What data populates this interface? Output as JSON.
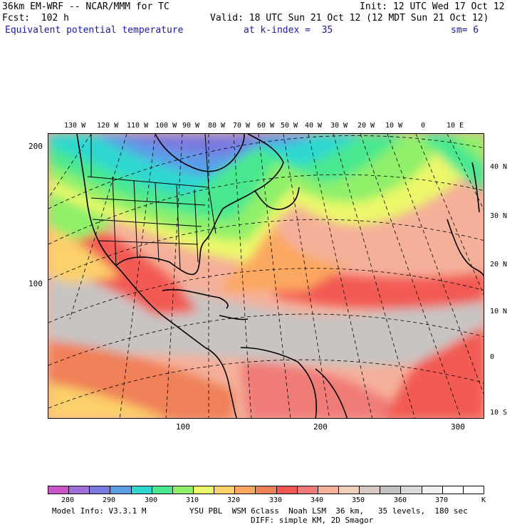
{
  "header": {
    "model": "36km EM-WRF -- NCAR/MMM for TC",
    "init": "Init: 12 UTC Wed 17 Oct 12",
    "fcst": "Fcst:  102 h",
    "valid": "Valid: 18 UTC Sun 21 Oct 12 (12 MDT Sun 21 Oct 12)",
    "field": "Equivalent potential temperature",
    "level": "at k-index =  35",
    "smooth": "sm= 6"
  },
  "map": {
    "lon_labels": [
      "130 W",
      "120 W",
      "110 W",
      "100 W",
      "90 W",
      "80 W",
      "70 W",
      "60 W",
      "50 W",
      "40 W",
      "30 W",
      "20 W",
      "10 W",
      "0",
      "10 E"
    ],
    "lat_labels": [
      "40 N",
      "30 N",
      "20 N",
      "10 N",
      "0",
      "10 S"
    ],
    "y_grid_labels": [
      "200",
      "100"
    ],
    "x_grid_labels": [
      "100",
      "200",
      "300"
    ]
  },
  "colorbar": {
    "colors": [
      "#cc55cc",
      "#a070d8",
      "#7a7ae0",
      "#5a9ee8",
      "#2ed8d0",
      "#48e890",
      "#90f06a",
      "#ecf86a",
      "#fcd06a",
      "#fca860",
      "#f08058",
      "#f25a52",
      "#f07c78",
      "#f5b09a",
      "#f2cfbc",
      "#d8c8c2",
      "#c2c2c2",
      "#dadada",
      "#f0f0f0",
      "#ffffff",
      "#ffffff"
    ],
    "labels": [
      "280",
      "290",
      "300",
      "310",
      "320",
      "330",
      "340",
      "350",
      "360",
      "370"
    ],
    "unit": "K"
  },
  "footer": {
    "model_info": "Model Info: V3.3.1 M",
    "physics": "YSU PBL  WSM 6class  Noah LSM  36 km,   35 levels,  180 sec",
    "diff": "DIFF: simple KM, 2D Smagor"
  }
}
